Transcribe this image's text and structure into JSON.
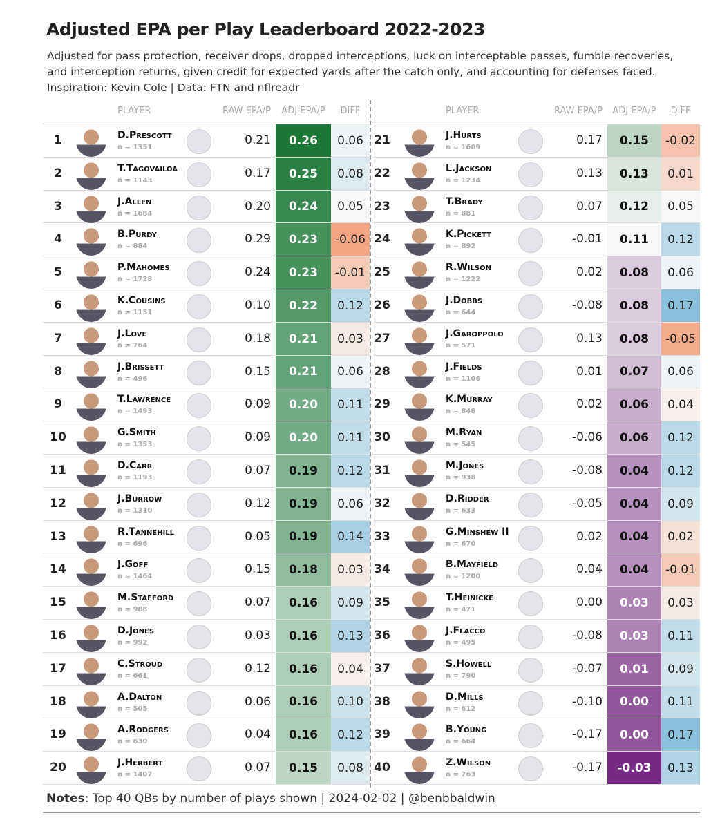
{
  "header": {
    "title": "Adjusted EPA per Play Leaderboard 2022-2023",
    "subtitle": [
      "Adjusted for pass protection, receiver drops, dropped interceptions, luck on interceptable passes, fumble recoveries,",
      "and interception returns, given credit for expected yards after the catch only, and accounting for defenses faced.",
      "Inspiration: Kevin Cole | Data: FTN and nflreadr"
    ]
  },
  "columns": {
    "player": "PLAYER",
    "raw": "RAW EPA/P",
    "adj": "ADJ EPA/P",
    "diff": "DIFF"
  },
  "rows": [
    {
      "rank": 1,
      "name": "D.Prescott",
      "n": "n = 1351",
      "raw": "0.21",
      "adj": "0.26",
      "diff": "0.06"
    },
    {
      "rank": 2,
      "name": "T.Tagovailoa",
      "n": "n = 1143",
      "raw": "0.17",
      "adj": "0.25",
      "diff": "0.08"
    },
    {
      "rank": 3,
      "name": "J.Allen",
      "n": "n = 1684",
      "raw": "0.20",
      "adj": "0.24",
      "diff": "0.05"
    },
    {
      "rank": 4,
      "name": "B.Purdy",
      "n": "n = 884",
      "raw": "0.29",
      "adj": "0.23",
      "diff": "-0.06"
    },
    {
      "rank": 5,
      "name": "P.Mahomes",
      "n": "n = 1728",
      "raw": "0.24",
      "adj": "0.23",
      "diff": "-0.01"
    },
    {
      "rank": 6,
      "name": "K.Cousins",
      "n": "n = 1151",
      "raw": "0.10",
      "adj": "0.22",
      "diff": "0.12"
    },
    {
      "rank": 7,
      "name": "J.Love",
      "n": "n = 764",
      "raw": "0.18",
      "adj": "0.21",
      "diff": "0.03"
    },
    {
      "rank": 8,
      "name": "J.Brissett",
      "n": "n = 496",
      "raw": "0.15",
      "adj": "0.21",
      "diff": "0.06"
    },
    {
      "rank": 9,
      "name": "T.Lawrence",
      "n": "n = 1493",
      "raw": "0.09",
      "adj": "0.20",
      "diff": "0.11"
    },
    {
      "rank": 10,
      "name": "G.Smith",
      "n": "n = 1353",
      "raw": "0.09",
      "adj": "0.20",
      "diff": "0.11"
    },
    {
      "rank": 11,
      "name": "D.Carr",
      "n": "n = 1193",
      "raw": "0.07",
      "adj": "0.19",
      "diff": "0.12"
    },
    {
      "rank": 12,
      "name": "J.Burrow",
      "n": "n = 1310",
      "raw": "0.12",
      "adj": "0.19",
      "diff": "0.06"
    },
    {
      "rank": 13,
      "name": "R.Tannehill",
      "n": "n = 696",
      "raw": "0.05",
      "adj": "0.19",
      "diff": "0.14"
    },
    {
      "rank": 14,
      "name": "J.Goff",
      "n": "n = 1464",
      "raw": "0.15",
      "adj": "0.18",
      "diff": "0.03"
    },
    {
      "rank": 15,
      "name": "M.Stafford",
      "n": "n = 988",
      "raw": "0.07",
      "adj": "0.16",
      "diff": "0.09"
    },
    {
      "rank": 16,
      "name": "D.Jones",
      "n": "n = 992",
      "raw": "0.03",
      "adj": "0.16",
      "diff": "0.13"
    },
    {
      "rank": 17,
      "name": "C.Stroud",
      "n": "n = 661",
      "raw": "0.12",
      "adj": "0.16",
      "diff": "0.04"
    },
    {
      "rank": 18,
      "name": "A.Dalton",
      "n": "n = 505",
      "raw": "0.06",
      "adj": "0.16",
      "diff": "0.10"
    },
    {
      "rank": 19,
      "name": "A.Rodgers",
      "n": "n = 630",
      "raw": "0.04",
      "adj": "0.16",
      "diff": "0.12"
    },
    {
      "rank": 20,
      "name": "J.Herbert",
      "n": "n = 1407",
      "raw": "0.07",
      "adj": "0.15",
      "diff": "0.08"
    },
    {
      "rank": 21,
      "name": "J.Hurts",
      "n": "n = 1609",
      "raw": "0.17",
      "adj": "0.15",
      "diff": "-0.02"
    },
    {
      "rank": 22,
      "name": "L.Jackson",
      "n": "n = 1234",
      "raw": "0.13",
      "adj": "0.13",
      "diff": "0.01"
    },
    {
      "rank": 23,
      "name": "T.Brady",
      "n": "n = 881",
      "raw": "0.07",
      "adj": "0.12",
      "diff": "0.05"
    },
    {
      "rank": 24,
      "name": "K.Pickett",
      "n": "n = 892",
      "raw": "-0.01",
      "adj": "0.11",
      "diff": "0.12"
    },
    {
      "rank": 25,
      "name": "R.Wilson",
      "n": "n = 1222",
      "raw": "0.02",
      "adj": "0.08",
      "diff": "0.06"
    },
    {
      "rank": 26,
      "name": "J.Dobbs",
      "n": "n = 644",
      "raw": "-0.08",
      "adj": "0.08",
      "diff": "0.17"
    },
    {
      "rank": 27,
      "name": "J.Garoppolo",
      "n": "n = 571",
      "raw": "0.13",
      "adj": "0.08",
      "diff": "-0.05"
    },
    {
      "rank": 28,
      "name": "J.Fields",
      "n": "n = 1106",
      "raw": "0.01",
      "adj": "0.07",
      "diff": "0.06"
    },
    {
      "rank": 29,
      "name": "K.Murray",
      "n": "n = 848",
      "raw": "0.02",
      "adj": "0.06",
      "diff": "0.04"
    },
    {
      "rank": 30,
      "name": "M.Ryan",
      "n": "n = 545",
      "raw": "-0.06",
      "adj": "0.06",
      "diff": "0.12"
    },
    {
      "rank": 31,
      "name": "M.Jones",
      "n": "n = 938",
      "raw": "-0.08",
      "adj": "0.04",
      "diff": "0.12"
    },
    {
      "rank": 32,
      "name": "D.Ridder",
      "n": "n = 633",
      "raw": "-0.05",
      "adj": "0.04",
      "diff": "0.09"
    },
    {
      "rank": 33,
      "name": "G.Minshew II",
      "n": "n = 670",
      "raw": "0.02",
      "adj": "0.04",
      "diff": "0.02"
    },
    {
      "rank": 34,
      "name": "B.Mayfield",
      "n": "n = 1200",
      "raw": "0.04",
      "adj": "0.04",
      "diff": "-0.01"
    },
    {
      "rank": 35,
      "name": "T.Heinicke",
      "n": "n = 471",
      "raw": "0.00",
      "adj": "0.03",
      "diff": "0.03"
    },
    {
      "rank": 36,
      "name": "J.Flacco",
      "n": "n = 495",
      "raw": "-0.08",
      "adj": "0.03",
      "diff": "0.11"
    },
    {
      "rank": 37,
      "name": "S.Howell",
      "n": "n = 790",
      "raw": "-0.07",
      "adj": "0.01",
      "diff": "0.09"
    },
    {
      "rank": 38,
      "name": "D.Mills",
      "n": "n = 612",
      "raw": "-0.10",
      "adj": "0.00",
      "diff": "0.11"
    },
    {
      "rank": 39,
      "name": "B.Young",
      "n": "n = 664",
      "raw": "-0.17",
      "adj": "0.00",
      "diff": "0.17"
    },
    {
      "rank": 40,
      "name": "Z.Wilson",
      "n": "n = 763",
      "raw": "-0.17",
      "adj": "-0.03",
      "diff": "0.13"
    }
  ],
  "notes": {
    "label": "Notes",
    "text": ": Top 40 QBs by number of plays shown | 2024-02-02 | @benbbaldwin"
  }
}
